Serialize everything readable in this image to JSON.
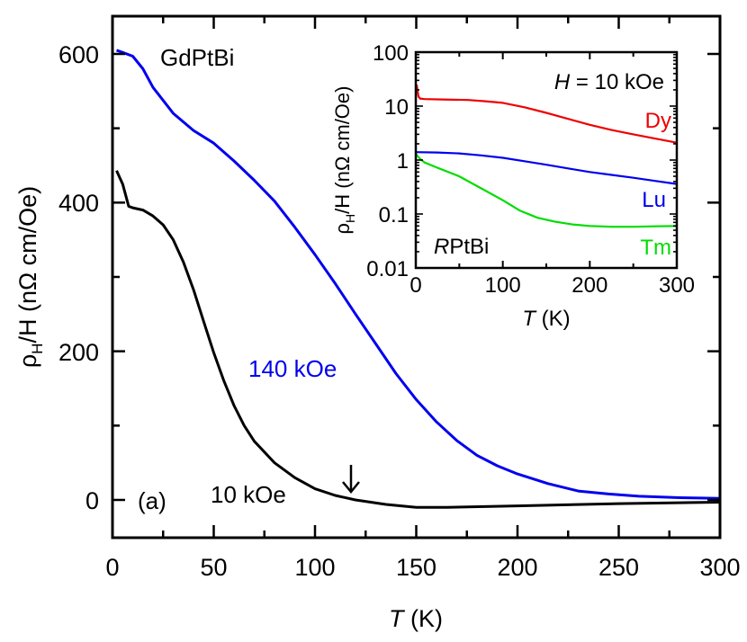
{
  "chart_data": [
    {
      "type": "line",
      "panel": "main",
      "title": "",
      "xlabel": "T (K)",
      "ylabel": "ρH/H (nΩ cm/Oe)",
      "xlim": [
        0,
        300
      ],
      "ylim": [
        -51,
        651
      ],
      "xticks": [
        0,
        50,
        100,
        150,
        200,
        250,
        300
      ],
      "yticks": [
        0,
        200,
        400,
        600
      ],
      "grid": false,
      "annotations": [
        "GdPtBi",
        "(a)",
        "140 kOe",
        "10 kOe",
        "arrow at T≈118 K"
      ],
      "series": [
        {
          "name": "140 kOe",
          "color": "#0000ee",
          "x": [
            2,
            5,
            10,
            15,
            20,
            30,
            40,
            50,
            60,
            70,
            80,
            90,
            100,
            110,
            120,
            130,
            140,
            150,
            160,
            170,
            180,
            190,
            200,
            215,
            230,
            245,
            260,
            280,
            300
          ],
          "y": [
            605,
            602,
            597,
            580,
            555,
            520,
            497,
            480,
            456,
            430,
            402,
            367,
            330,
            291,
            250,
            210,
            170,
            135,
            105,
            80,
            60,
            46,
            35,
            22,
            12,
            8,
            5,
            3,
            2
          ]
        },
        {
          "name": "10 kOe",
          "color": "#000000",
          "x": [
            2,
            5,
            8,
            10,
            15,
            20,
            25,
            30,
            35,
            40,
            45,
            50,
            55,
            60,
            65,
            70,
            80,
            90,
            100,
            110,
            120,
            135,
            150,
            165,
            200,
            250,
            300
          ],
          "y": [
            443,
            425,
            395,
            393,
            390,
            382,
            370,
            350,
            320,
            283,
            240,
            198,
            160,
            127,
            100,
            79,
            50,
            30,
            15,
            6,
            0,
            -6,
            -10,
            -10,
            -8,
            -5,
            -3
          ]
        }
      ]
    },
    {
      "type": "line",
      "panel": "inset",
      "title": "",
      "xlabel": "T (K)",
      "ylabel": "ρH/H (nΩ cm/Oe)",
      "xlim": [
        0,
        300
      ],
      "ylim": [
        0.01,
        100
      ],
      "yscale": "log",
      "xticks": [
        0,
        100,
        200,
        300
      ],
      "yticks": [
        0.01,
        0.1,
        1,
        10,
        100
      ],
      "grid": false,
      "annotations": [
        "H = 10 kOe",
        "RPtBi",
        "Dy",
        "Lu",
        "Tm"
      ],
      "series": [
        {
          "name": "Dy",
          "color": "#ee0000",
          "x": [
            1,
            3,
            5,
            10,
            30,
            60,
            80,
            100,
            125,
            150,
            175,
            200,
            225,
            250,
            275,
            300
          ],
          "y": [
            25,
            15,
            13.8,
            13.5,
            13.3,
            13,
            12.3,
            11.5,
            9.5,
            7.5,
            5.8,
            4.5,
            3.6,
            3.0,
            2.5,
            2.1
          ]
        },
        {
          "name": "Lu",
          "color": "#0000ee",
          "x": [
            0,
            25,
            50,
            75,
            100,
            125,
            150,
            175,
            200,
            225,
            250,
            275,
            300
          ],
          "y": [
            1.4,
            1.38,
            1.33,
            1.22,
            1.1,
            0.95,
            0.82,
            0.7,
            0.6,
            0.53,
            0.47,
            0.41,
            0.36
          ]
        },
        {
          "name": "Tm",
          "color": "#00dd00",
          "x": [
            0,
            5,
            10,
            25,
            50,
            75,
            100,
            120,
            140,
            160,
            180,
            200,
            225,
            250,
            275,
            300
          ],
          "y": [
            1.3,
            1.05,
            0.9,
            0.72,
            0.5,
            0.3,
            0.18,
            0.115,
            0.085,
            0.072,
            0.064,
            0.06,
            0.058,
            0.058,
            0.059,
            0.06
          ]
        }
      ]
    }
  ],
  "main": {
    "x_ticks": [
      "0",
      "50",
      "100",
      "150",
      "200",
      "250",
      "300"
    ],
    "y_ticks": [
      "0",
      "200",
      "400",
      "600"
    ],
    "xlabel_italic": "T",
    "xlabel_rest": " (K)",
    "ylabel_rho": "ρ",
    "ylabel_sub": "H",
    "ylabel_rest": "/H (nΩ cm/Oe)",
    "compound_label": "GdPtBi",
    "panel_label": "(a)",
    "label_140": "140 kOe",
    "label_10": "10 kOe",
    "arrow_glyph": "↓"
  },
  "inset": {
    "x_ticks": [
      "0",
      "100",
      "200",
      "300"
    ],
    "y_ticks": [
      "0.01",
      "0.1",
      "1",
      "10",
      "100"
    ],
    "xlabel_italic": "T",
    "xlabel_rest": " (K)",
    "ylabel_rho": "ρ",
    "ylabel_sub": "H",
    "ylabel_rest": "/H (nΩ cm/Oe)",
    "field_italic": "H",
    "field_rest": " = 10 kOe",
    "compound_italic": "R",
    "compound_rest": "PtBi",
    "label_dy": "Dy",
    "label_lu": "Lu",
    "label_tm": "Tm"
  },
  "colors": {
    "blue": "#0000ee",
    "red": "#ee0000",
    "green": "#00dd00",
    "black": "#000000"
  }
}
